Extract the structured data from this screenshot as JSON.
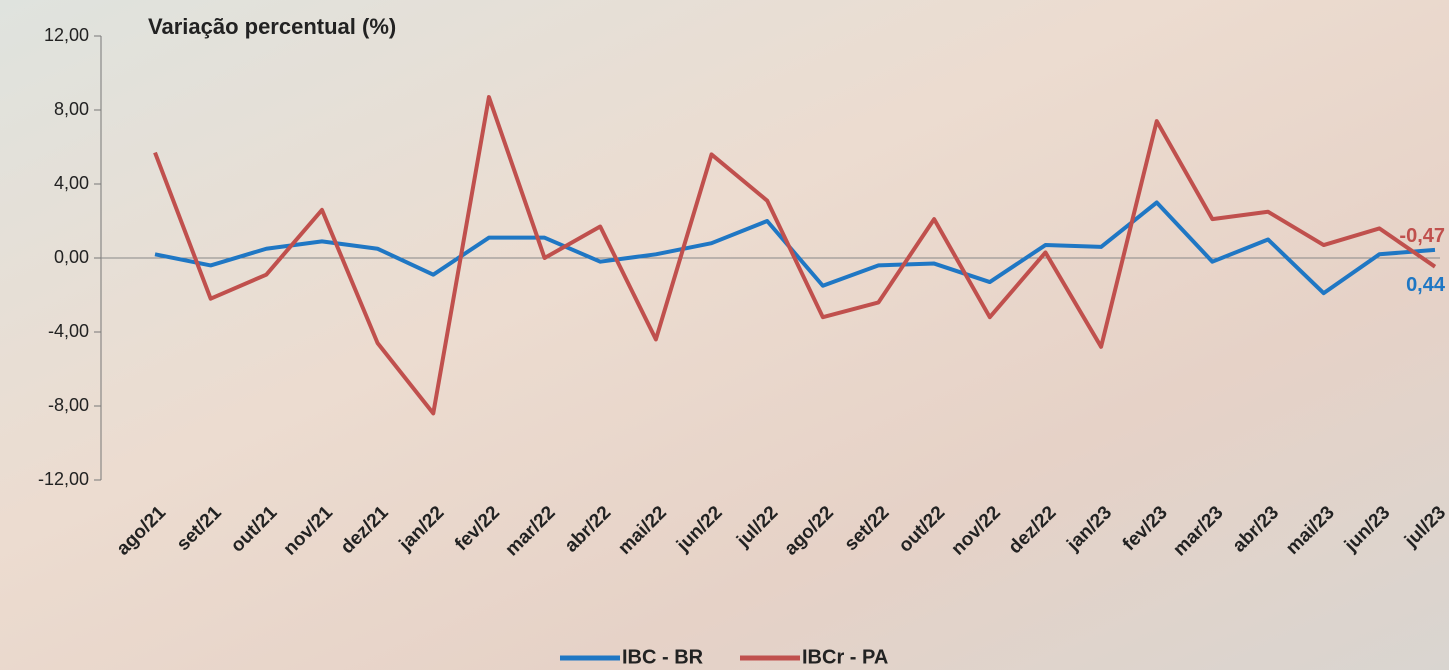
{
  "chart_data": {
    "type": "line",
    "title": "Variação percentual (%)",
    "categories": [
      "ago/21",
      "set/21",
      "out/21",
      "nov/21",
      "dez/21",
      "jan/22",
      "fev/22",
      "mar/22",
      "abr/22",
      "mai/22",
      "jun/22",
      "jul/22",
      "ago/22",
      "set/22",
      "out/22",
      "nov/22",
      "dez/22",
      "jan/23",
      "fev/23",
      "mar/23",
      "abr/23",
      "mai/23",
      "jun/23",
      "jul/23"
    ],
    "series": [
      {
        "name": "IBC - BR",
        "color": "#1f77c4",
        "values": [
          0.2,
          -0.4,
          0.5,
          0.9,
          0.5,
          -0.9,
          1.1,
          1.1,
          -0.2,
          0.2,
          0.8,
          2.0,
          -1.5,
          -0.4,
          -0.3,
          -1.3,
          0.7,
          0.6,
          3.0,
          -0.2,
          1.0,
          -1.9,
          0.2,
          0.44
        ],
        "value_labels": [
          null,
          null,
          null,
          null,
          null,
          null,
          null,
          null,
          null,
          null,
          null,
          null,
          null,
          null,
          null,
          null,
          null,
          null,
          null,
          null,
          null,
          null,
          null,
          "0,44"
        ]
      },
      {
        "name": "IBCr - PA",
        "color": "#c0504d",
        "values": [
          5.7,
          -2.2,
          -0.9,
          2.6,
          -4.6,
          -8.4,
          8.7,
          0.0,
          1.7,
          -4.4,
          5.6,
          3.1,
          -3.2,
          -2.4,
          2.1,
          -3.2,
          0.3,
          -4.8,
          7.4,
          2.1,
          2.5,
          0.7,
          1.6,
          -0.47
        ],
        "value_labels": [
          null,
          null,
          null,
          null,
          null,
          null,
          null,
          null,
          null,
          null,
          null,
          null,
          null,
          null,
          null,
          null,
          null,
          null,
          null,
          null,
          null,
          null,
          null,
          "-0,47"
        ]
      }
    ],
    "ylim": [
      -12,
      12
    ],
    "yticks": [
      {
        "value": -12,
        "label": "-12,00"
      },
      {
        "value": -8,
        "label": "-8,00"
      },
      {
        "value": -4,
        "label": "-4,00"
      },
      {
        "value": 0,
        "label": "0,00"
      },
      {
        "value": 4,
        "label": "4,00"
      },
      {
        "value": 8,
        "label": "8,00"
      },
      {
        "value": 12,
        "label": "12,00"
      }
    ],
    "legend": "bottom"
  }
}
